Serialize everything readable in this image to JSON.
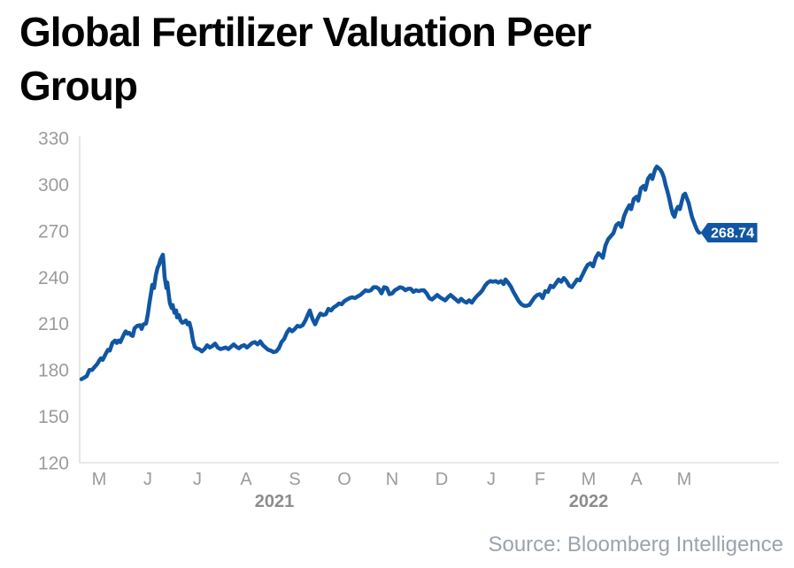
{
  "header": {
    "title": "Global Fertilizer Valuation Peer Group"
  },
  "source": {
    "label": "Source: Bloomberg Intelligence"
  },
  "chart_data": {
    "type": "line",
    "title": "Global Fertilizer Valuation Peer Group",
    "xlabel": "",
    "ylabel": "",
    "ylim": [
      120,
      330
    ],
    "y_ticks": [
      330,
      300,
      270,
      240,
      210,
      180,
      150,
      120
    ],
    "grid": false,
    "legend": null,
    "colors": {
      "line": "#1156a3",
      "axis": "#d9d9d9",
      "tick_label": "#9b9b9b",
      "year_label": "#8c8c8c",
      "badge_fill": "#1156a3",
      "badge_text": "#ffffff"
    },
    "x_axis": {
      "month_labels": [
        "M",
        "J",
        "J",
        "A",
        "S",
        "O",
        "N",
        "D",
        "J",
        "F",
        "M",
        "A",
        "M"
      ],
      "month_x": [
        112,
        167,
        223,
        278,
        333,
        389,
        443,
        499,
        555,
        610,
        665,
        719,
        773
      ],
      "year_labels": [
        {
          "label": "2021",
          "x": 310
        },
        {
          "label": "2022",
          "x": 665
        }
      ]
    },
    "last_value": 268.74,
    "last_value_label": "268.74",
    "series": [
      {
        "name": "Global Fertilizer Valuation Peer Group",
        "points": [
          [
            92,
            174
          ],
          [
            95,
            175
          ],
          [
            98,
            176
          ],
          [
            101,
            180
          ],
          [
            104,
            180
          ],
          [
            107,
            182
          ],
          [
            110,
            184
          ],
          [
            112,
            186
          ],
          [
            114,
            187.5
          ],
          [
            116,
            186.5
          ],
          [
            119,
            190
          ],
          [
            122,
            193
          ],
          [
            124,
            192.5
          ],
          [
            127,
            197.5
          ],
          [
            130,
            199
          ],
          [
            132,
            197.5
          ],
          [
            134,
            199
          ],
          [
            136,
            198
          ],
          [
            138,
            200.5
          ],
          [
            140,
            203
          ],
          [
            142,
            205
          ],
          [
            144,
            203.5
          ],
          [
            146,
            204
          ],
          [
            148,
            202.5
          ],
          [
            150,
            202
          ],
          [
            152,
            207
          ],
          [
            155,
            208.5
          ],
          [
            158,
            209
          ],
          [
            160,
            206.5
          ],
          [
            162,
            209.5
          ],
          [
            165,
            210
          ],
          [
            167,
            216
          ],
          [
            169,
            224
          ],
          [
            171,
            231
          ],
          [
            172,
            235
          ],
          [
            174,
            233
          ],
          [
            176,
            241
          ],
          [
            178,
            246
          ],
          [
            180,
            248.5
          ],
          [
            181,
            251
          ],
          [
            184,
            254.5
          ],
          [
            185,
            248
          ],
          [
            186,
            240
          ],
          [
            188,
            233
          ],
          [
            189,
            236.5
          ],
          [
            191,
            227
          ],
          [
            192,
            223
          ],
          [
            194,
            220
          ],
          [
            195,
            222
          ],
          [
            197,
            217
          ],
          [
            199,
            218.5
          ],
          [
            200,
            214
          ],
          [
            202,
            215.5
          ],
          [
            204,
            212
          ],
          [
            206,
            210.5
          ],
          [
            208,
            211
          ],
          [
            210,
            212
          ],
          [
            212,
            209.5
          ],
          [
            214,
            210.5
          ],
          [
            216,
            206
          ],
          [
            218,
            199
          ],
          [
            220,
            195
          ],
          [
            222,
            194
          ],
          [
            225,
            193.5
          ],
          [
            228,
            192
          ],
          [
            231,
            193.5
          ],
          [
            234,
            196
          ],
          [
            237,
            194.5
          ],
          [
            240,
            195.5
          ],
          [
            243,
            197
          ],
          [
            246,
            194.5
          ],
          [
            249,
            193.5
          ],
          [
            252,
            194
          ],
          [
            255,
            194.5
          ],
          [
            258,
            193.5
          ],
          [
            261,
            195
          ],
          [
            264,
            196.5
          ],
          [
            267,
            195
          ],
          [
            270,
            194
          ],
          [
            273,
            195.5
          ],
          [
            276,
            196
          ],
          [
            279,
            194.5
          ],
          [
            282,
            196
          ],
          [
            285,
            197.5
          ],
          [
            288,
            198
          ],
          [
            291,
            196.5
          ],
          [
            294,
            198.5
          ],
          [
            297,
            196
          ],
          [
            300,
            194.5
          ],
          [
            303,
            193
          ],
          [
            306,
            192.5
          ],
          [
            309,
            191.5
          ],
          [
            312,
            192
          ],
          [
            315,
            194
          ],
          [
            318,
            198
          ],
          [
            321,
            200
          ],
          [
            324,
            204
          ],
          [
            327,
            206.5
          ],
          [
            330,
            205
          ],
          [
            333,
            206.5
          ],
          [
            336,
            208.5
          ],
          [
            339,
            208
          ],
          [
            342,
            209
          ],
          [
            345,
            212
          ],
          [
            348,
            216
          ],
          [
            350,
            218.5
          ],
          [
            353,
            213
          ],
          [
            356,
            209.5
          ],
          [
            359,
            213.5
          ],
          [
            362,
            216.5
          ],
          [
            365,
            215.5
          ],
          [
            368,
            216
          ],
          [
            371,
            219.5
          ],
          [
            374,
            218.5
          ],
          [
            377,
            220.5
          ],
          [
            380,
            221.5
          ],
          [
            383,
            223
          ],
          [
            386,
            222.5
          ],
          [
            389,
            224.5
          ],
          [
            392,
            225.5
          ],
          [
            395,
            226.5
          ],
          [
            398,
            227
          ],
          [
            401,
            226.5
          ],
          [
            404,
            227.5
          ],
          [
            407,
            228.5
          ],
          [
            410,
            230
          ],
          [
            413,
            231.5
          ],
          [
            416,
            231
          ],
          [
            419,
            231.5
          ],
          [
            422,
            233.5
          ],
          [
            425,
            233.5
          ],
          [
            428,
            232.5
          ],
          [
            431,
            229.5
          ],
          [
            434,
            233.5
          ],
          [
            437,
            233
          ],
          [
            440,
            229
          ],
          [
            443,
            229.5
          ],
          [
            446,
            231.5
          ],
          [
            449,
            232.5
          ],
          [
            452,
            233.5
          ],
          [
            455,
            233
          ],
          [
            458,
            231.5
          ],
          [
            461,
            232.5
          ],
          [
            464,
            232.5
          ],
          [
            467,
            230.5
          ],
          [
            470,
            231.5
          ],
          [
            473,
            231
          ],
          [
            476,
            231.5
          ],
          [
            479,
            231.5
          ],
          [
            482,
            229.5
          ],
          [
            485,
            226.5
          ],
          [
            488,
            225.5
          ],
          [
            491,
            227
          ],
          [
            494,
            228.5
          ],
          [
            497,
            227
          ],
          [
            500,
            226
          ],
          [
            503,
            225
          ],
          [
            506,
            227
          ],
          [
            509,
            228.5
          ],
          [
            512,
            227
          ],
          [
            515,
            225.5
          ],
          [
            518,
            224
          ],
          [
            521,
            226
          ],
          [
            524,
            224.5
          ],
          [
            527,
            223.5
          ],
          [
            530,
            225
          ],
          [
            533,
            223.5
          ],
          [
            536,
            226
          ],
          [
            539,
            228
          ],
          [
            542,
            229.5
          ],
          [
            545,
            231.5
          ],
          [
            548,
            234.5
          ],
          [
            551,
            236.5
          ],
          [
            554,
            237.5
          ],
          [
            557,
            237
          ],
          [
            560,
            237.5
          ],
          [
            563,
            236.5
          ],
          [
            566,
            237.5
          ],
          [
            569,
            235.5
          ],
          [
            571,
            238.5
          ],
          [
            574,
            236.5
          ],
          [
            577,
            234
          ],
          [
            580,
            230.5
          ],
          [
            583,
            227.5
          ],
          [
            586,
            224.5
          ],
          [
            589,
            222.5
          ],
          [
            592,
            221.5
          ],
          [
            595,
            221.5
          ],
          [
            598,
            222
          ],
          [
            601,
            224.5
          ],
          [
            604,
            227
          ],
          [
            607,
            228.5
          ],
          [
            610,
            229
          ],
          [
            613,
            226.5
          ],
          [
            616,
            231
          ],
          [
            619,
            230.5
          ],
          [
            622,
            234.5
          ],
          [
            625,
            233.5
          ],
          [
            628,
            236
          ],
          [
            631,
            238.5
          ],
          [
            634,
            237
          ],
          [
            637,
            239.5
          ],
          [
            640,
            237.5
          ],
          [
            643,
            234.5
          ],
          [
            646,
            233.5
          ],
          [
            649,
            236
          ],
          [
            652,
            238.5
          ],
          [
            655,
            238
          ],
          [
            658,
            241.5
          ],
          [
            661,
            245
          ],
          [
            664,
            248
          ],
          [
            667,
            249
          ],
          [
            670,
            247
          ],
          [
            673,
            252.5
          ],
          [
            676,
            255.5
          ],
          [
            679,
            254
          ],
          [
            681,
            252.5
          ],
          [
            684,
            260.5
          ],
          [
            687,
            264.5
          ],
          [
            690,
            266.5
          ],
          [
            693,
            268.5
          ],
          [
            696,
            273.5
          ],
          [
            699,
            275
          ],
          [
            702,
            272.5
          ],
          [
            705,
            279.5
          ],
          [
            708,
            283.5
          ],
          [
            711,
            286.5
          ],
          [
            713,
            284
          ],
          [
            716,
            290.5
          ],
          [
            719,
            292
          ],
          [
            721,
            289.5
          ],
          [
            724,
            297.5
          ],
          [
            727,
            299
          ],
          [
            729,
            296.5
          ],
          [
            732,
            303.5
          ],
          [
            735,
            306
          ],
          [
            737,
            303.5
          ],
          [
            740,
            309.5
          ],
          [
            742,
            311.5
          ],
          [
            744,
            310.5
          ],
          [
            746,
            309.5
          ],
          [
            748,
            307.5
          ],
          [
            750,
            304.5
          ],
          [
            752,
            299.5
          ],
          [
            754,
            295.5
          ],
          [
            756,
            291
          ],
          [
            758,
            285.5
          ],
          [
            760,
            281
          ],
          [
            762,
            279
          ],
          [
            764,
            283.5
          ],
          [
            766,
            285.5
          ],
          [
            768,
            284
          ],
          [
            770,
            288.5
          ],
          [
            772,
            293
          ],
          [
            774,
            294
          ],
          [
            776,
            291
          ],
          [
            778,
            288
          ],
          [
            780,
            283
          ],
          [
            782,
            278.5
          ],
          [
            784,
            275.5
          ],
          [
            786,
            272.5
          ],
          [
            788,
            270
          ],
          [
            790,
            268.74
          ]
        ]
      }
    ]
  }
}
